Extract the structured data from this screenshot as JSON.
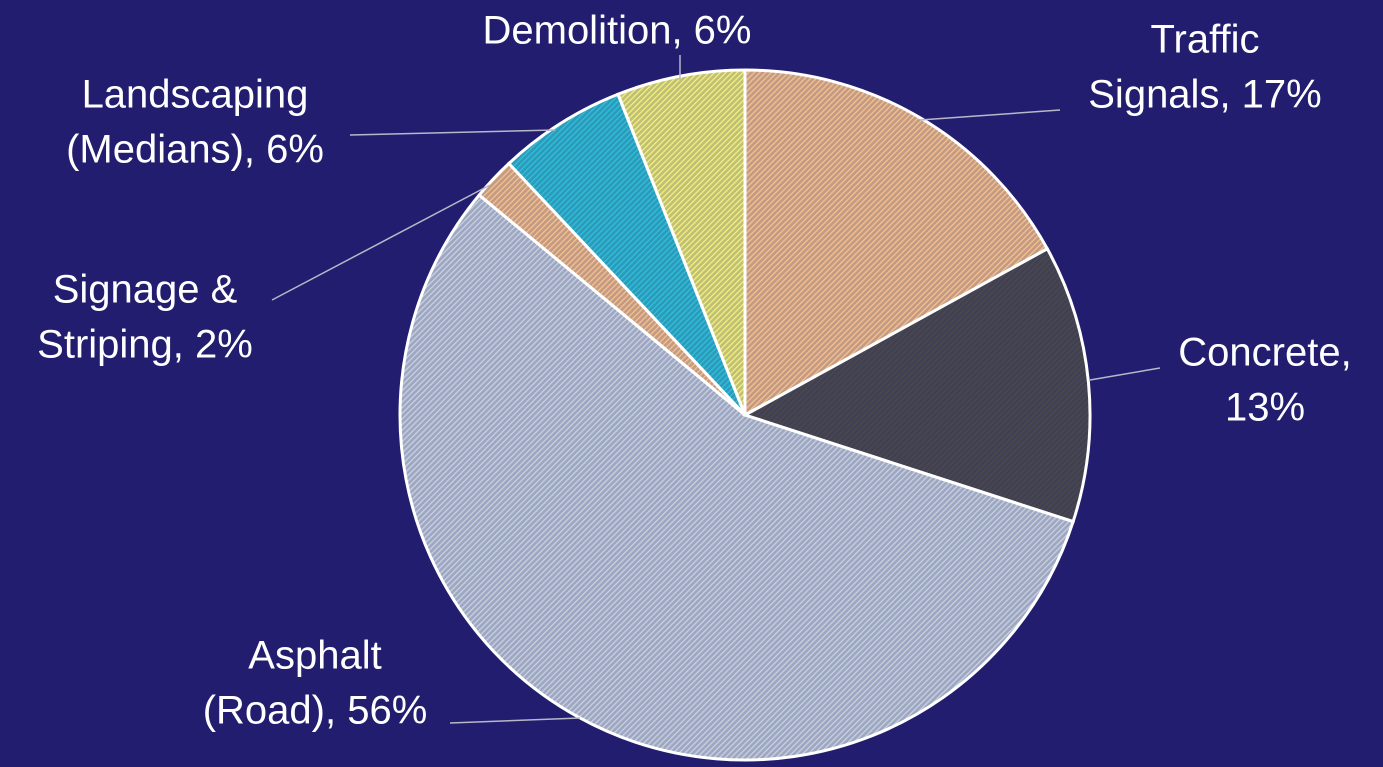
{
  "chart_data": {
    "type": "pie",
    "categories": [
      [
        "Traffic",
        "Signals, 17%"
      ],
      [
        "Concrete,",
        "13%"
      ],
      [
        "Asphalt",
        "(Road), 56%"
      ],
      [
        "Signage &",
        "Striping, 2%"
      ],
      [
        "Landscaping",
        "(Medians), 6%"
      ],
      [
        "Demolition, 6%"
      ]
    ],
    "values": [
      17,
      13,
      56,
      2,
      6,
      6
    ],
    "colors": [
      "#f8c48c",
      "#4a4a4a",
      "#c8d4de",
      "#f8c48c",
      "#2fc3d6",
      "#f4f47a"
    ]
  }
}
